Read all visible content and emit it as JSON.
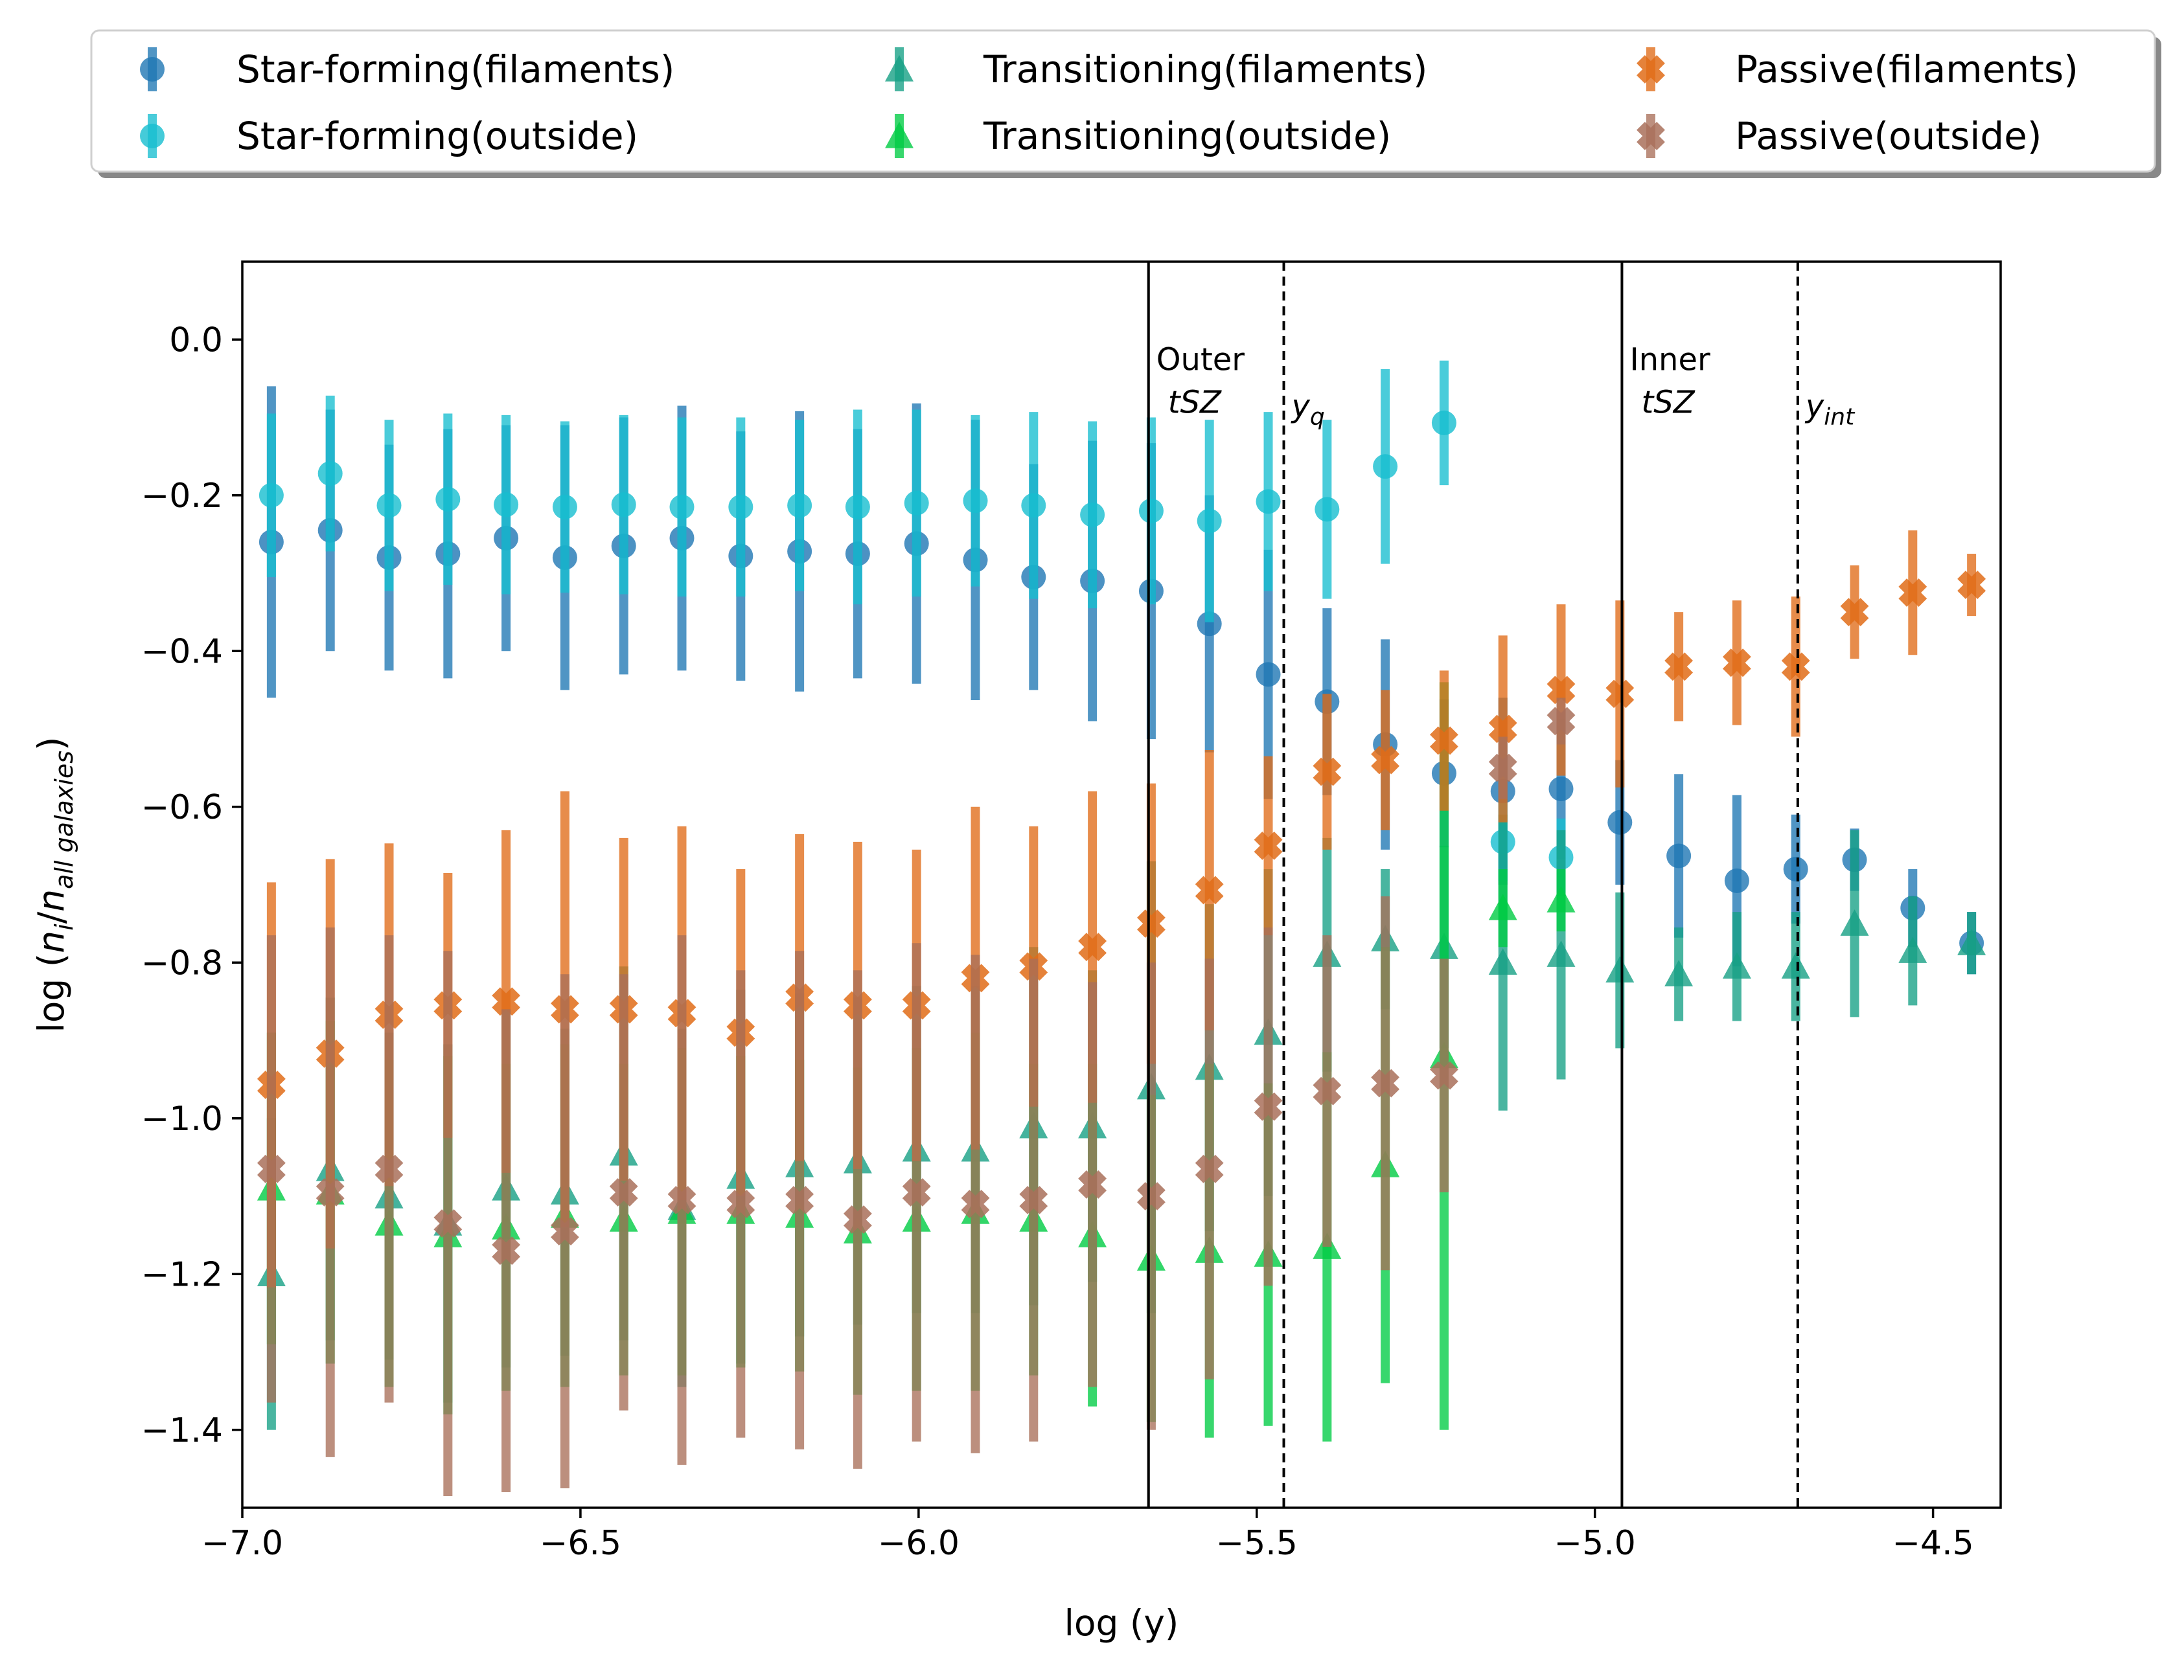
{
  "chart_data": {
    "type": "scatter",
    "title": "",
    "xlabel": "log (y)",
    "ylabel": "log (n_i/n_all galaxies)",
    "xlim": [
      -7.0,
      -4.4
    ],
    "ylim": [
      -1.5,
      0.1
    ],
    "xticks": [
      -7.0,
      -6.5,
      -6.0,
      -5.5,
      -5.0,
      -4.5
    ],
    "xtick_labels": [
      "−7.0",
      "−6.5",
      "−6.0",
      "−5.5",
      "−5.0",
      "−4.5"
    ],
    "yticks": [
      0.0,
      -0.2,
      -0.4,
      -0.6,
      -0.8,
      -1.0,
      -1.2,
      -1.4
    ],
    "ytick_labels": [
      "0.0",
      "−0.2",
      "−0.4",
      "−0.6",
      "−0.8",
      "−1.0",
      "−1.2",
      "−1.4"
    ],
    "grid": false,
    "legend_position": "top, outside, 3 columns",
    "vlines": [
      {
        "x": -5.66,
        "style": "solid",
        "label_line1": "Outer",
        "label_line2": "tSZ"
      },
      {
        "x": -5.46,
        "style": "dashed",
        "label_main": "y",
        "label_sub": "q"
      },
      {
        "x": -4.96,
        "style": "solid",
        "label_line1": "Inner",
        "label_line2": "tSZ"
      },
      {
        "x": -4.7,
        "style": "dashed",
        "label_main": "y",
        "label_sub": "int"
      }
    ],
    "series": [
      {
        "name": "Star-forming(filaments)",
        "marker": "circle",
        "color": "#1f77b4",
        "x": [
          -6.957,
          -6.87,
          -6.783,
          -6.696,
          -6.61,
          -6.523,
          -6.436,
          -6.35,
          -6.263,
          -6.176,
          -6.09,
          -6.003,
          -5.916,
          -5.83,
          -5.743,
          -5.656,
          -5.57,
          -5.483,
          -5.396,
          -5.31,
          -5.223,
          -5.136,
          -5.05,
          -4.963,
          -4.876,
          -4.79,
          -4.703,
          -4.616,
          -4.53,
          -4.443
        ],
        "y": [
          -0.26,
          -0.245,
          -0.28,
          -0.275,
          -0.255,
          -0.28,
          -0.265,
          -0.255,
          -0.278,
          -0.272,
          -0.275,
          -0.262,
          -0.283,
          -0.305,
          -0.31,
          -0.323,
          -0.365,
          -0.43,
          -0.465,
          -0.52,
          -0.557,
          -0.58,
          -0.577,
          -0.62,
          -0.663,
          -0.695,
          -0.68,
          -0.668,
          -0.73,
          -0.775
        ],
        "err": [
          0.2,
          0.155,
          0.145,
          0.16,
          0.145,
          0.17,
          0.165,
          0.17,
          0.16,
          0.18,
          0.16,
          0.18,
          0.18,
          0.145,
          0.18,
          0.19,
          0.165,
          0.16,
          0.12,
          0.135,
          0.095,
          0.12,
          0.09,
          0.08,
          0.105,
          0.11,
          0.07,
          0.04,
          0.05,
          0.04
        ]
      },
      {
        "name": "Star-forming(outside)",
        "marker": "circle",
        "color": "#17becf",
        "x": [
          -6.957,
          -6.87,
          -6.783,
          -6.696,
          -6.61,
          -6.523,
          -6.436,
          -6.35,
          -6.263,
          -6.176,
          -6.09,
          -6.003,
          -5.916,
          -5.83,
          -5.743,
          -5.656,
          -5.57,
          -5.483,
          -5.396,
          -5.31,
          -5.223,
          -5.136,
          -5.05
        ],
        "y": [
          -0.2,
          -0.172,
          -0.213,
          -0.205,
          -0.212,
          -0.215,
          -0.212,
          -0.215,
          -0.215,
          -0.213,
          -0.215,
          -0.21,
          -0.207,
          -0.213,
          -0.225,
          -0.22,
          -0.233,
          -0.208,
          -0.218,
          -0.163,
          -0.107,
          -0.645,
          -0.665
        ],
        "err": [
          0.105,
          0.1,
          0.11,
          0.11,
          0.115,
          0.11,
          0.115,
          0.115,
          0.115,
          0.11,
          0.125,
          0.12,
          0.11,
          0.12,
          0.12,
          0.12,
          0.13,
          0.115,
          0.115,
          0.125,
          0.08,
          0.05,
          0.05
        ]
      },
      {
        "name": "Transitioning(filaments)",
        "marker": "triangle",
        "color": "#16a085",
        "x": [
          -6.957,
          -6.87,
          -6.783,
          -6.696,
          -6.61,
          -6.523,
          -6.436,
          -6.35,
          -6.263,
          -6.176,
          -6.09,
          -6.003,
          -5.916,
          -5.83,
          -5.743,
          -5.656,
          -5.57,
          -5.483,
          -5.396,
          -5.31,
          -5.223,
          -5.136,
          -5.05,
          -4.963,
          -4.876,
          -4.79,
          -4.703,
          -4.616,
          -4.53,
          -4.443
        ],
        "y": [
          -1.2,
          -1.065,
          -1.1,
          -1.135,
          -1.09,
          -1.095,
          -1.045,
          -1.115,
          -1.075,
          -1.06,
          -1.055,
          -1.04,
          -1.04,
          -1.01,
          -1.01,
          -0.96,
          -0.935,
          -0.89,
          -0.79,
          -0.77,
          -0.78,
          -0.8,
          -0.79,
          -0.81,
          -0.815,
          -0.805,
          -0.805,
          -0.75,
          -0.785,
          -0.775
        ],
        "err": [
          0.2,
          0.22,
          0.21,
          0.23,
          0.23,
          0.21,
          0.24,
          0.23,
          0.24,
          0.22,
          0.21,
          0.21,
          0.21,
          0.23,
          0.2,
          0.29,
          0.21,
          0.21,
          0.15,
          0.09,
          0.13,
          0.19,
          0.16,
          0.1,
          0.06,
          0.07,
          0.07,
          0.12,
          0.07,
          0.04
        ]
      },
      {
        "name": "Transitioning(outside)",
        "marker": "triangle",
        "color": "#00cc44",
        "x": [
          -6.957,
          -6.87,
          -6.783,
          -6.696,
          -6.61,
          -6.523,
          -6.436,
          -6.35,
          -6.263,
          -6.176,
          -6.09,
          -6.003,
          -5.916,
          -5.83,
          -5.743,
          -5.656,
          -5.57,
          -5.483,
          -5.396,
          -5.31,
          -5.223,
          -5.136,
          -5.05
        ],
        "y": [
          -1.09,
          -1.095,
          -1.135,
          -1.15,
          -1.14,
          -1.125,
          -1.13,
          -1.12,
          -1.12,
          -1.125,
          -1.145,
          -1.13,
          -1.12,
          -1.13,
          -1.15,
          -1.18,
          -1.17,
          -1.175,
          -1.165,
          -1.06,
          -0.92,
          -0.73,
          -0.72
        ],
        "err": [
          0.2,
          0.22,
          0.21,
          0.23,
          0.21,
          0.22,
          0.2,
          0.21,
          0.2,
          0.2,
          0.21,
          0.22,
          0.23,
          0.2,
          0.22,
          0.21,
          0.24,
          0.22,
          0.25,
          0.28,
          0.48,
          0.05,
          0.04
        ]
      },
      {
        "name": "Passive(filaments)",
        "marker": "plus",
        "color": "#e06c18",
        "x": [
          -6.957,
          -6.87,
          -6.783,
          -6.696,
          -6.61,
          -6.523,
          -6.436,
          -6.35,
          -6.263,
          -6.176,
          -6.09,
          -6.003,
          -5.916,
          -5.83,
          -5.743,
          -5.656,
          -5.57,
          -5.483,
          -5.396,
          -5.31,
          -5.223,
          -5.136,
          -5.05,
          -4.963,
          -4.876,
          -4.79,
          -4.703,
          -4.616,
          -4.53,
          -4.443
        ],
        "y": [
          -0.957,
          -0.917,
          -0.867,
          -0.855,
          -0.85,
          -0.86,
          -0.86,
          -0.865,
          -0.89,
          -0.845,
          -0.855,
          -0.855,
          -0.82,
          -0.805,
          -0.78,
          -0.75,
          -0.707,
          -0.65,
          -0.555,
          -0.54,
          -0.515,
          -0.5,
          -0.45,
          -0.455,
          -0.42,
          -0.415,
          -0.42,
          -0.35,
          -0.325,
          -0.315
        ],
        "err": [
          0.26,
          0.25,
          0.22,
          0.17,
          0.22,
          0.28,
          0.22,
          0.24,
          0.21,
          0.21,
          0.21,
          0.2,
          0.22,
          0.18,
          0.2,
          0.18,
          0.18,
          0.115,
          0.1,
          0.09,
          0.09,
          0.12,
          0.11,
          0.12,
          0.07,
          0.08,
          0.09,
          0.06,
          0.08,
          0.04
        ]
      },
      {
        "name": "Passive(outside)",
        "marker": "plus",
        "color": "#a9705a",
        "x": [
          -6.957,
          -6.87,
          -6.783,
          -6.696,
          -6.61,
          -6.523,
          -6.436,
          -6.35,
          -6.263,
          -6.176,
          -6.09,
          -6.003,
          -5.916,
          -5.83,
          -5.743,
          -5.656,
          -5.57,
          -5.483,
          -5.396,
          -5.31,
          -5.223,
          -5.136,
          -5.05
        ],
        "y": [
          -1.065,
          -1.095,
          -1.065,
          -1.135,
          -1.17,
          -1.145,
          -1.095,
          -1.105,
          -1.11,
          -1.105,
          -1.13,
          -1.095,
          -1.11,
          -1.105,
          -1.085,
          -1.1,
          -1.065,
          -0.985,
          -0.965,
          -0.955,
          -0.945,
          -0.55,
          -0.49
        ],
        "err": [
          0.3,
          0.34,
          0.3,
          0.35,
          0.31,
          0.33,
          0.28,
          0.34,
          0.3,
          0.32,
          0.32,
          0.32,
          0.32,
          0.31,
          0.26,
          0.3,
          0.27,
          0.23,
          0.2,
          0.24,
          0.15,
          0.04,
          0.03
        ]
      }
    ]
  }
}
